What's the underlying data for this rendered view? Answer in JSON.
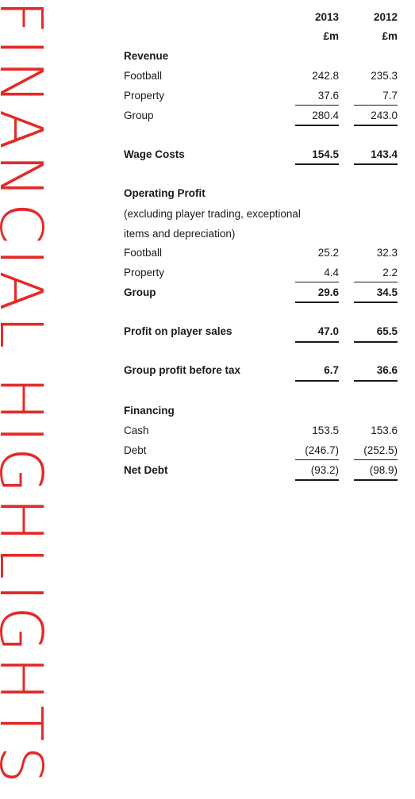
{
  "side_title": "FINANCIAL HIGHLIGHTS",
  "columns": {
    "y2013": "2013",
    "y2012": "2012",
    "unit": "£m"
  },
  "sections": {
    "revenue": {
      "heading": "Revenue",
      "football": {
        "label": "Football",
        "v2013": "242.8",
        "v2012": "235.3"
      },
      "property": {
        "label": "Property",
        "v2013": "37.6",
        "v2012": "7.7"
      },
      "group": {
        "label": "Group",
        "v2013": "280.4",
        "v2012": "243.0"
      }
    },
    "wage_costs": {
      "label": "Wage Costs",
      "v2013": "154.5",
      "v2012": "143.4"
    },
    "operating_profit": {
      "heading": "Operating Profit",
      "note_line1": "(excluding player trading, exceptional",
      "note_line2": "items and depreciation)",
      "football": {
        "label": "Football",
        "v2013": "25.2",
        "v2012": "32.3"
      },
      "property": {
        "label": "Property",
        "v2013": "4.4",
        "v2012": "2.2"
      },
      "group": {
        "label": "Group",
        "v2013": "29.6",
        "v2012": "34.5"
      }
    },
    "player_sales": {
      "label": "Profit on player sales",
      "v2013": "47.0",
      "v2012": "65.5"
    },
    "group_profit": {
      "label": "Group profit before tax",
      "v2013": "6.7",
      "v2012": "36.6"
    },
    "financing": {
      "heading": "Financing",
      "cash": {
        "label": "Cash",
        "v2013": "153.5",
        "v2012": "153.6"
      },
      "debt": {
        "label": "Debt",
        "v2013": "(246.7)",
        "v2012": "(252.5)"
      },
      "net_debt": {
        "label": "Net Debt",
        "v2013": "(93.2)",
        "v2012": "(98.9)"
      }
    }
  },
  "colors": {
    "accent": "#e42a27",
    "text": "#1a1a1a"
  }
}
